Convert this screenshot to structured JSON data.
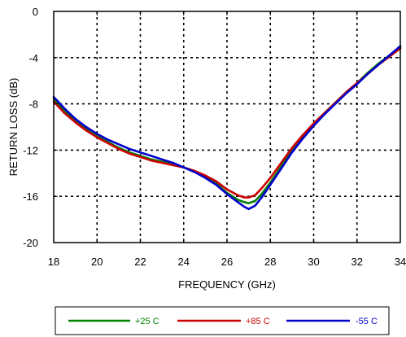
{
  "chart_data": {
    "type": "line",
    "title": "",
    "xlabel": "FREQUENCY (GHz)",
    "ylabel": "RETURN LOSS (dB)",
    "xlim": [
      18,
      34
    ],
    "ylim": [
      -20,
      0
    ],
    "xticks": [
      18,
      20,
      22,
      24,
      26,
      28,
      30,
      32,
      34
    ],
    "yticks": [
      0,
      -4,
      -8,
      -12,
      -16,
      -20
    ],
    "grid": "dotted",
    "legend_position": "bottom, below axis",
    "series": [
      {
        "name": "+25 C",
        "color": "#008000",
        "x": [
          18,
          18.5,
          19,
          19.5,
          20,
          20.5,
          21,
          21.5,
          22,
          22.5,
          23,
          23.5,
          24,
          24.5,
          25,
          25.5,
          26,
          26.5,
          26.8,
          27,
          27.3,
          27.6,
          28,
          28.5,
          29,
          29.5,
          30,
          30.5,
          31,
          31.5,
          32,
          32.5,
          33,
          33.5,
          34
        ],
        "y": [
          -7.6,
          -8.6,
          -9.5,
          -10.2,
          -10.8,
          -11.3,
          -11.8,
          -12.2,
          -12.5,
          -12.8,
          -13.0,
          -13.2,
          -13.5,
          -13.8,
          -14.3,
          -14.9,
          -15.7,
          -16.3,
          -16.5,
          -16.6,
          -16.4,
          -15.8,
          -14.8,
          -13.4,
          -12.0,
          -10.8,
          -9.7,
          -8.8,
          -7.9,
          -7.0,
          -6.2,
          -5.3,
          -4.5,
          -3.8,
          -3.1
        ]
      },
      {
        "name": "+85 C",
        "color": "#cc0000",
        "x": [
          18,
          18.5,
          19,
          19.5,
          20,
          20.5,
          21,
          21.5,
          22,
          22.5,
          23,
          23.5,
          24,
          24.5,
          25,
          25.5,
          26,
          26.5,
          26.8,
          27,
          27.3,
          27.6,
          28,
          28.5,
          29,
          29.5,
          30,
          30.5,
          31,
          31.5,
          32,
          32.5,
          33,
          33.5,
          34
        ],
        "y": [
          -7.8,
          -8.8,
          -9.6,
          -10.3,
          -10.9,
          -11.4,
          -11.9,
          -12.3,
          -12.6,
          -12.9,
          -13.1,
          -13.3,
          -13.5,
          -13.8,
          -14.2,
          -14.7,
          -15.4,
          -15.9,
          -16.1,
          -16.1,
          -15.9,
          -15.3,
          -14.4,
          -13.1,
          -11.8,
          -10.7,
          -9.7,
          -8.8,
          -7.9,
          -7.0,
          -6.2,
          -5.4,
          -4.6,
          -3.9,
          -3.2
        ]
      },
      {
        "name": "-55 C",
        "color": "#0000cc",
        "x": [
          18,
          18.5,
          19,
          19.5,
          20,
          20.5,
          21,
          21.5,
          22,
          22.5,
          23,
          23.5,
          24,
          24.5,
          25,
          25.5,
          26,
          26.5,
          26.8,
          27,
          27.3,
          27.6,
          28,
          28.5,
          29,
          29.5,
          30,
          30.5,
          31,
          31.5,
          32,
          32.5,
          33,
          33.5,
          34
        ],
        "y": [
          -7.4,
          -8.4,
          -9.3,
          -10.0,
          -10.6,
          -11.1,
          -11.5,
          -11.9,
          -12.2,
          -12.5,
          -12.8,
          -13.1,
          -13.5,
          -13.9,
          -14.4,
          -15.0,
          -15.8,
          -16.5,
          -16.9,
          -17.1,
          -16.8,
          -16.1,
          -15.0,
          -13.6,
          -12.2,
          -11.0,
          -9.9,
          -8.9,
          -8.0,
          -7.1,
          -6.3,
          -5.4,
          -4.6,
          -3.8,
          -3.0
        ]
      }
    ]
  }
}
